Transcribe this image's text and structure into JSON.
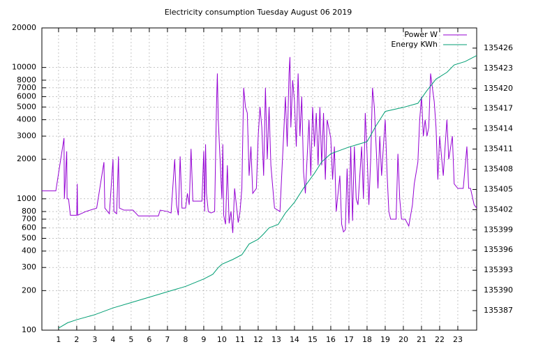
{
  "chart_data": {
    "type": "line",
    "title": "Electricity consumption Tuesday August 06 2019",
    "xlim": [
      0.08,
      24.04
    ],
    "xticks": [
      1,
      2,
      3,
      4,
      5,
      6,
      7,
      8,
      9,
      10,
      11,
      12,
      13,
      14,
      15,
      16,
      17,
      18,
      19,
      20,
      21,
      22,
      23
    ],
    "ylim": [
      100,
      20000
    ],
    "ylog": true,
    "yticks": [
      100,
      200,
      300,
      400,
      500,
      600,
      700,
      800,
      1000,
      2000,
      3000,
      4000,
      5000,
      6000,
      7000,
      8000,
      10000,
      20000
    ],
    "y2lim": [
      135384.1,
      135429
    ],
    "y2ticks": [
      135387,
      135390,
      135393,
      135396,
      135399,
      135402,
      135405,
      135408,
      135411,
      135414,
      135417,
      135420,
      135423,
      135426
    ],
    "grid": true,
    "legend": "top-right",
    "series": [
      {
        "name": "Power W",
        "color": "#9400d3",
        "x": [
          0.08,
          0.85,
          1.3,
          1.32,
          1.45,
          1.47,
          1.55,
          1.65,
          2.0,
          2.03,
          2.05,
          2.5,
          3.1,
          3.5,
          3.55,
          3.7,
          3.8,
          4.0,
          4.05,
          4.2,
          4.3,
          4.35,
          4.6,
          5.1,
          5.4,
          6.0,
          6.5,
          6.6,
          7.0,
          7.2,
          7.4,
          7.5,
          7.6,
          7.7,
          7.8,
          8.0,
          8.1,
          8.2,
          8.3,
          8.4,
          8.9,
          9.0,
          9.05,
          9.1,
          9.15,
          9.25,
          9.4,
          9.6,
          9.7,
          9.75,
          9.8,
          9.9,
          10.0,
          10.05,
          10.1,
          10.2,
          10.3,
          10.4,
          10.5,
          10.6,
          10.7,
          10.9,
          11.0,
          11.1,
          11.2,
          11.3,
          11.4,
          11.5,
          11.6,
          11.7,
          11.9,
          12.0,
          12.1,
          12.2,
          12.3,
          12.4,
          12.5,
          12.6,
          12.7,
          12.9,
          13.2,
          13.4,
          13.5,
          13.6,
          13.7,
          13.75,
          13.8,
          13.9,
          14.0,
          14.1,
          14.2,
          14.3,
          14.4,
          14.5,
          14.6,
          14.8,
          14.9,
          15.0,
          15.1,
          15.2,
          15.3,
          15.4,
          15.5,
          15.6,
          15.7,
          15.8,
          16.0,
          16.1,
          16.2,
          16.3,
          16.5,
          16.6,
          16.7,
          16.8,
          16.9,
          17.0,
          17.1,
          17.2,
          17.3,
          17.4,
          17.5,
          17.7,
          17.8,
          17.9,
          18.0,
          18.1,
          18.2,
          18.3,
          18.4,
          18.5,
          18.6,
          18.7,
          18.8,
          18.9,
          19.0,
          19.1,
          19.2,
          19.3,
          19.6,
          19.7,
          19.8,
          19.9,
          20.1,
          20.3,
          20.5,
          20.6,
          20.8,
          20.9,
          21.0,
          21.1,
          21.2,
          21.3,
          21.4,
          21.5,
          21.6,
          21.7,
          21.8,
          21.9,
          22.0,
          22.2,
          22.3,
          22.4,
          22.5,
          22.7,
          22.8,
          23.0,
          23.3,
          23.5,
          23.6,
          23.7,
          23.9,
          24.04
        ],
        "values": [
          1150,
          1150,
          2900,
          1000,
          2300,
          1000,
          1000,
          750,
          750,
          1300,
          750,
          800,
          850,
          1900,
          850,
          800,
          770,
          2000,
          800,
          770,
          2100,
          850,
          820,
          820,
          740,
          740,
          740,
          820,
          800,
          780,
          2000,
          900,
          750,
          2100,
          850,
          850,
          1100,
          900,
          2400,
          960,
          960,
          2300,
          800,
          2600,
          1100,
          800,
          780,
          800,
          5000,
          9000,
          4000,
          2000,
          1000,
          2600,
          750,
          640,
          1800,
          650,
          800,
          550,
          1200,
          660,
          800,
          1200,
          7000,
          5000,
          4500,
          1500,
          2500,
          1100,
          1200,
          3000,
          5000,
          3500,
          1500,
          7000,
          2000,
          5000,
          1800,
          850,
          800,
          3000,
          6000,
          2500,
          9000,
          12000,
          3500,
          8000,
          5500,
          2500,
          9000,
          3000,
          6000,
          1600,
          1100,
          4000,
          1500,
          5000,
          2500,
          4500,
          1800,
          5000,
          1800,
          4500,
          1400,
          4000,
          2900,
          1400,
          2500,
          800,
          1500,
          640,
          560,
          580,
          1700,
          650,
          2500,
          680,
          2500,
          1000,
          900,
          2500,
          1000,
          4500,
          2200,
          900,
          2000,
          7000,
          5000,
          2500,
          1200,
          3000,
          1500,
          2500,
          4000,
          1600,
          800,
          700,
          700,
          2200,
          1000,
          700,
          700,
          620,
          900,
          1300,
          1900,
          4000,
          6000,
          3000,
          4000,
          3000,
          3500,
          9000,
          7000,
          5500,
          3500,
          1400,
          3000,
          1500,
          2500,
          4000,
          2000,
          3000,
          1300,
          1200,
          1200,
          2500,
          1200,
          1200,
          900,
          850
        ]
      },
      {
        "name": "Energy KWh",
        "color": "#009e73",
        "axis": "y2",
        "x": [
          1,
          1.5,
          2,
          3,
          4,
          5,
          6,
          7,
          8,
          9,
          9.5,
          9.8,
          10,
          10.6,
          11.1,
          11.5,
          12,
          12.3,
          12.6,
          13.1,
          13.5,
          14,
          14.5,
          15.1,
          15.5,
          16,
          17,
          18,
          18.5,
          19,
          20,
          20.8,
          21.3,
          21.8,
          22.4,
          22.8,
          23.4,
          24.04
        ],
        "values": [
          135384.4,
          135385.2,
          135385.65,
          135386.4,
          135387.4,
          135388.2,
          135389,
          135389.8,
          135390.6,
          135391.7,
          135392.4,
          135393.4,
          135393.9,
          135394.6,
          135395.3,
          135396.9,
          135397.6,
          135398.4,
          135399.3,
          135399.8,
          135401.5,
          135403.1,
          135405.2,
          135407.4,
          135409.1,
          135410.3,
          135411.3,
          135412.1,
          135414.5,
          135416.6,
          135417.2,
          135417.8,
          135419.7,
          135421.4,
          135422.4,
          135423.5,
          135424,
          135424.9
        ]
      }
    ]
  }
}
